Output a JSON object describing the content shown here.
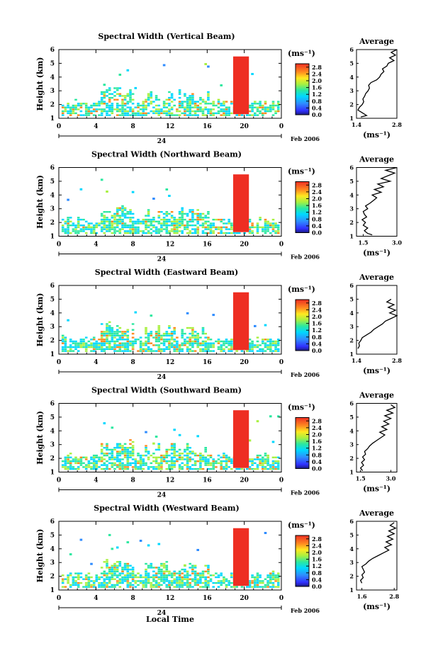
{
  "figure": {
    "bottom_xlabel": "Local Time",
    "colorbar_unit": "(ms⁻¹)",
    "avg_title": "Average",
    "avg_unit": "(ms⁻¹)",
    "date_text": "Feb 2006",
    "date_day": "24"
  },
  "chart_data": [
    {
      "type": "heatmap",
      "title": "Spectral Width (Vertical Beam)",
      "ylabel": "Height (km)",
      "x_ticks": [
        "0",
        "4",
        "8",
        "12",
        "16",
        "20",
        "0"
      ],
      "xlim": [
        0,
        24
      ],
      "ylim": [
        1,
        6
      ],
      "y_ticks": [
        "1",
        "2",
        "3",
        "4",
        "5",
        "6"
      ],
      "colorbar": {
        "ticks": [
          "0.0",
          "0.4",
          "0.8",
          "1.2",
          "1.6",
          "2.0",
          "2.4",
          "2.8"
        ],
        "range": [
          0,
          3.0
        ]
      },
      "average": {
        "title": "Average",
        "xlim": [
          1.4,
          2.8
        ],
        "x_ticks": [
          "1.4",
          "2.8"
        ],
        "heights": [
          1.1,
          1.2,
          1.4,
          1.6,
          1.8,
          2.0,
          2.2,
          2.4,
          2.6,
          2.8,
          3.0,
          3.2,
          3.4,
          3.6,
          3.8,
          4.0,
          4.2,
          4.4,
          4.6,
          4.8,
          5.0,
          5.2,
          5.4,
          5.6,
          5.8,
          6.0
        ],
        "values": [
          1.55,
          1.75,
          1.6,
          1.45,
          1.5,
          1.6,
          1.65,
          1.62,
          1.68,
          1.72,
          1.8,
          1.85,
          1.82,
          1.9,
          2.1,
          2.2,
          2.25,
          2.35,
          2.3,
          2.45,
          2.5,
          2.7,
          2.55,
          2.75,
          2.6,
          2.8
        ]
      }
    },
    {
      "type": "heatmap",
      "title": "Spectral Width (Northward Beam)",
      "ylabel": "Height (km)",
      "x_ticks": [
        "0",
        "4",
        "8",
        "12",
        "16",
        "20",
        "0"
      ],
      "xlim": [
        0,
        24
      ],
      "ylim": [
        1,
        6
      ],
      "y_ticks": [
        "1",
        "2",
        "3",
        "4",
        "5",
        "6"
      ],
      "colorbar": {
        "ticks": [
          "0.0",
          "0.4",
          "0.8",
          "1.2",
          "1.6",
          "2.0",
          "2.4",
          "2.8"
        ],
        "range": [
          0,
          3.0
        ]
      },
      "average": {
        "title": "Average",
        "xlim": [
          1.2,
          3.0
        ],
        "x_ticks": [
          "1.5",
          "3.0"
        ],
        "heights": [
          1.1,
          1.2,
          1.4,
          1.6,
          1.8,
          2.0,
          2.2,
          2.4,
          2.6,
          2.8,
          3.0,
          3.2,
          3.4,
          3.6,
          3.8,
          4.0,
          4.2,
          4.4,
          4.6,
          4.8,
          5.0,
          5.2,
          5.4,
          5.6,
          5.8,
          6.0
        ],
        "values": [
          1.9,
          1.7,
          1.55,
          1.7,
          1.5,
          1.6,
          1.45,
          1.65,
          1.55,
          1.5,
          1.7,
          1.6,
          1.8,
          1.95,
          2.1,
          1.9,
          2.3,
          2.0,
          2.4,
          2.15,
          2.7,
          2.3,
          2.6,
          2.9,
          2.5,
          3.0
        ]
      }
    },
    {
      "type": "heatmap",
      "title": "Spectral Width (Eastward Beam)",
      "ylabel": "Height (km)",
      "x_ticks": [
        "0",
        "4",
        "8",
        "12",
        "16",
        "20",
        "0"
      ],
      "xlim": [
        0,
        24
      ],
      "ylim": [
        1,
        6
      ],
      "y_ticks": [
        "1",
        "2",
        "3",
        "4",
        "5",
        "6"
      ],
      "colorbar": {
        "ticks": [
          "0.0",
          "0.4",
          "0.8",
          "1.2",
          "1.6",
          "2.0",
          "2.4",
          "2.8"
        ],
        "range": [
          0,
          3.0
        ]
      },
      "average": {
        "title": "Average",
        "xlim": [
          1.4,
          2.8
        ],
        "x_ticks": [
          "1.4",
          "2.8"
        ],
        "heights": [
          1.4,
          1.6,
          1.8,
          2.0,
          2.2,
          2.4,
          2.6,
          2.8,
          3.0,
          3.2,
          3.4,
          3.6,
          3.8,
          4.0,
          4.2,
          4.4,
          4.6,
          4.8,
          5.0
        ],
        "values": [
          1.45,
          1.5,
          1.48,
          1.55,
          1.6,
          1.75,
          1.9,
          2.0,
          2.15,
          2.3,
          2.4,
          2.6,
          2.8,
          2.55,
          2.75,
          2.5,
          2.7,
          2.45,
          2.6
        ]
      }
    },
    {
      "type": "heatmap",
      "title": "Spectral Width (Southward Beam)",
      "ylabel": "Height (km)",
      "x_ticks": [
        "0",
        "4",
        "8",
        "12",
        "16",
        "20",
        "0"
      ],
      "xlim": [
        0,
        24
      ],
      "ylim": [
        1,
        6
      ],
      "y_ticks": [
        "1",
        "2",
        "3",
        "4",
        "5",
        "6"
      ],
      "colorbar": {
        "ticks": [
          "0.0",
          "0.4",
          "0.8",
          "1.2",
          "1.6",
          "2.0",
          "2.4",
          "2.8"
        ],
        "range": [
          0,
          3.0
        ]
      },
      "average": {
        "title": "Average",
        "xlim": [
          1.3,
          3.3
        ],
        "x_ticks": [
          "1.5",
          "3.0"
        ],
        "heights": [
          1.1,
          1.3,
          1.5,
          1.7,
          1.9,
          2.1,
          2.3,
          2.5,
          2.7,
          2.9,
          3.1,
          3.3,
          3.5,
          3.7,
          3.9,
          4.1,
          4.3,
          4.5,
          4.7,
          4.9,
          5.1,
          5.3,
          5.5,
          5.7,
          5.9
        ],
        "values": [
          1.6,
          1.5,
          1.65,
          1.55,
          1.7,
          1.6,
          1.75,
          1.7,
          1.85,
          1.95,
          2.1,
          2.3,
          2.5,
          2.7,
          2.45,
          2.8,
          2.55,
          2.9,
          2.65,
          3.0,
          2.7,
          3.1,
          2.8,
          3.2,
          3.0
        ]
      }
    },
    {
      "type": "heatmap",
      "title": "Spectral Width (Westward Beam)",
      "ylabel": "Height (km)",
      "x_ticks": [
        "0",
        "4",
        "8",
        "12",
        "16",
        "20",
        "0"
      ],
      "xlim": [
        0,
        24
      ],
      "ylim": [
        1,
        6
      ],
      "y_ticks": [
        "1",
        "2",
        "3",
        "4",
        "5",
        "6"
      ],
      "colorbar": {
        "ticks": [
          "0.0",
          "0.4",
          "0.8",
          "1.2",
          "1.6",
          "2.0",
          "2.4",
          "2.8"
        ],
        "range": [
          0,
          3.0
        ]
      },
      "average": {
        "title": "Average",
        "xlim": [
          1.4,
          2.9
        ],
        "x_ticks": [
          "1.6",
          "2.8"
        ],
        "heights": [
          1.5,
          1.7,
          1.9,
          2.1,
          2.3,
          2.5,
          2.7,
          2.9,
          3.1,
          3.3,
          3.5,
          3.7,
          3.9,
          4.1,
          4.3,
          4.5,
          4.7,
          4.9,
          5.1,
          5.3,
          5.5,
          5.7,
          5.9
        ],
        "values": [
          1.6,
          1.55,
          1.65,
          1.6,
          1.7,
          1.65,
          1.6,
          1.75,
          1.85,
          2.0,
          2.2,
          2.4,
          2.6,
          2.45,
          2.7,
          2.5,
          2.75,
          2.55,
          2.8,
          2.6,
          2.85,
          2.65,
          2.8
        ]
      }
    }
  ]
}
